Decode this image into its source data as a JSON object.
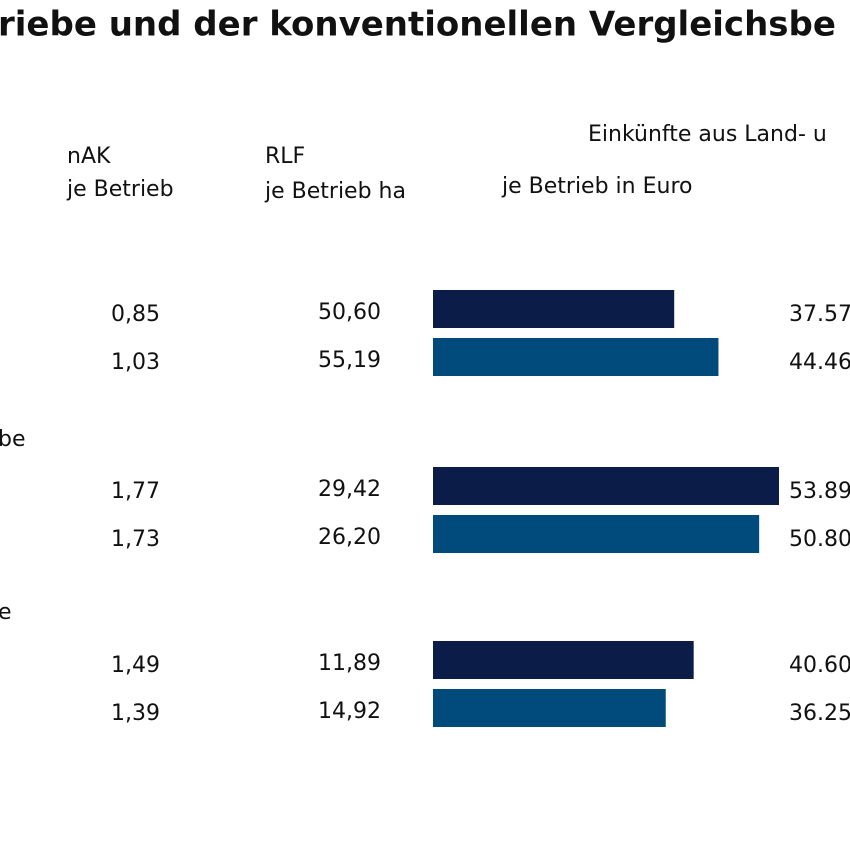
{
  "title": "riebe und der konventionellen Vergleichsbe",
  "headers": {
    "nak": [
      "nAK",
      "je Betrieb"
    ],
    "rlf": [
      "RLF",
      "je Betrieb ha"
    ],
    "income_top": "Einkünfte aus Land- u",
    "income_sub": "je Betrieb in Euro"
  },
  "table": {
    "group_labels": [
      "be",
      "e"
    ],
    "rows": [
      {
        "nak": "0,85",
        "rlf": "50,60"
      },
      {
        "nak": "1,03",
        "rlf": "55,19"
      },
      {
        "nak": "1,77",
        "rlf": "29,42"
      },
      {
        "nak": "1,73",
        "rlf": "26,20"
      },
      {
        "nak": "1,49",
        "rlf": "11,89"
      },
      {
        "nak": "1,39",
        "rlf": "14,92"
      }
    ]
  },
  "chart_data": {
    "type": "bar",
    "orientation": "horizontal",
    "values": [
      37570,
      44460,
      53890,
      50800,
      40600,
      36250
    ],
    "value_labels": [
      "37.57",
      "44.46",
      "53.89",
      "50.80",
      "40.60",
      "36.25"
    ],
    "colors": [
      "#0b1c48",
      "#004a7c"
    ]
  }
}
